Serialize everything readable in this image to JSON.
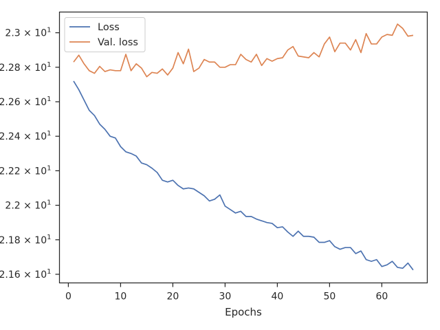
{
  "chart_data": {
    "type": "line",
    "title": "",
    "xlabel": "Epochs",
    "ylabel": "",
    "xlim": [
      -1.7,
      68.7
    ],
    "ylim": [
      21.55,
      23.12
    ],
    "grid": false,
    "legend_position": "top-left",
    "x_ticks": [
      {
        "value": 0,
        "label": "0"
      },
      {
        "value": 10,
        "label": "10"
      },
      {
        "value": 20,
        "label": "20"
      },
      {
        "value": 30,
        "label": "30"
      },
      {
        "value": 40,
        "label": "40"
      },
      {
        "value": 50,
        "label": "50"
      },
      {
        "value": 60,
        "label": "60"
      }
    ],
    "y_ticks": [
      {
        "value": 21.6,
        "label": "2.16 × 10",
        "exp": "1"
      },
      {
        "value": 21.8,
        "label": "2.18 × 10",
        "exp": "1"
      },
      {
        "value": 22.0,
        "label": "2.2 × 10",
        "exp": "1"
      },
      {
        "value": 22.2,
        "label": "2.22 × 10",
        "exp": "1"
      },
      {
        "value": 22.4,
        "label": "2.24 × 10",
        "exp": "1"
      },
      {
        "value": 22.6,
        "label": "2.26 × 10",
        "exp": "1"
      },
      {
        "value": 22.8,
        "label": "2.28 × 10",
        "exp": "1"
      },
      {
        "value": 23.0,
        "label": "2.3 × 10",
        "exp": "1"
      }
    ],
    "x": [
      1,
      2,
      3,
      4,
      5,
      6,
      7,
      8,
      9,
      10,
      11,
      12,
      13,
      14,
      15,
      16,
      17,
      18,
      19,
      20,
      21,
      22,
      23,
      24,
      25,
      26,
      27,
      28,
      29,
      30,
      31,
      32,
      33,
      34,
      35,
      36,
      37,
      38,
      39,
      40,
      41,
      42,
      43,
      44,
      45,
      46,
      47,
      48,
      49,
      50,
      51,
      52,
      53,
      54,
      55,
      56,
      57,
      58,
      59,
      60,
      61,
      62,
      63,
      64,
      65,
      66
    ],
    "series": [
      {
        "name": "Loss",
        "color": "#4c72b0",
        "values": [
          22.72,
          22.67,
          22.61,
          22.55,
          22.52,
          22.47,
          22.44,
          22.4,
          22.39,
          22.34,
          22.31,
          22.3,
          22.285,
          22.245,
          22.235,
          22.215,
          22.19,
          22.145,
          22.135,
          22.145,
          22.115,
          22.095,
          22.1,
          22.095,
          22.075,
          22.055,
          22.025,
          22.035,
          22.06,
          21.995,
          21.975,
          21.955,
          21.965,
          21.935,
          21.935,
          21.92,
          21.91,
          21.9,
          21.895,
          21.87,
          21.875,
          21.845,
          21.82,
          21.85,
          21.82,
          21.82,
          21.815,
          21.785,
          21.785,
          21.795,
          21.76,
          21.745,
          21.755,
          21.755,
          21.72,
          21.735,
          21.685,
          21.675,
          21.685,
          21.645,
          21.655,
          21.675,
          21.64,
          21.635,
          21.665,
          21.625
        ]
      },
      {
        "name": "Val. loss",
        "color": "#dd8452",
        "values": [
          22.83,
          22.87,
          22.82,
          22.78,
          22.765,
          22.805,
          22.775,
          22.785,
          22.78,
          22.78,
          22.875,
          22.78,
          22.82,
          22.795,
          22.745,
          22.77,
          22.765,
          22.79,
          22.755,
          22.795,
          22.885,
          22.82,
          22.905,
          22.775,
          22.795,
          22.845,
          22.83,
          22.83,
          22.8,
          22.8,
          22.815,
          22.815,
          22.875,
          22.845,
          22.83,
          22.875,
          22.81,
          22.85,
          22.835,
          22.85,
          22.855,
          22.9,
          22.92,
          22.865,
          22.86,
          22.855,
          22.885,
          22.86,
          22.935,
          22.975,
          22.89,
          22.94,
          22.94,
          22.9,
          22.96,
          22.885,
          22.995,
          22.935,
          22.935,
          22.975,
          22.99,
          22.985,
          23.05,
          23.025,
          22.98,
          22.985
        ]
      }
    ]
  }
}
